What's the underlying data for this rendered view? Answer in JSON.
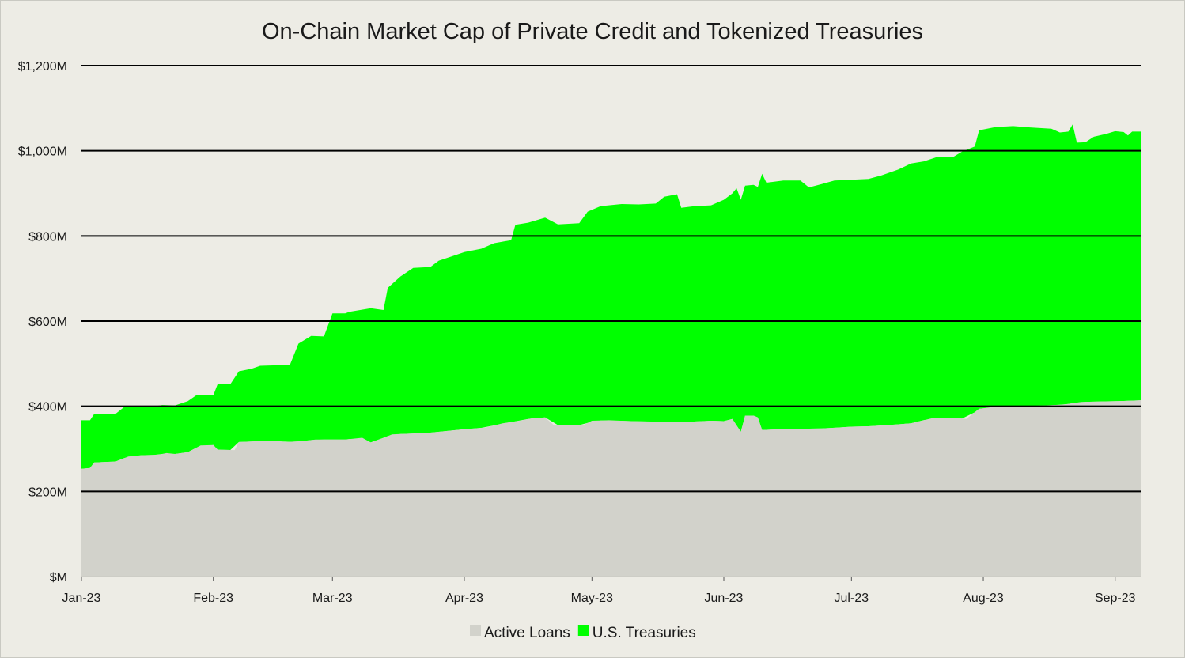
{
  "chart_data": {
    "type": "area",
    "stacked": true,
    "title": "On-Chain Market Cap of Private Credit and Tokenized Treasuries",
    "xlabel": "",
    "ylabel": "",
    "ylim": [
      0,
      1200
    ],
    "y_ticks": [
      {
        "value": 0,
        "label": "$M"
      },
      {
        "value": 200,
        "label": "$200M"
      },
      {
        "value": 400,
        "label": "$400M"
      },
      {
        "value": 600,
        "label": "$600M"
      },
      {
        "value": 800,
        "label": "$800M"
      },
      {
        "value": 1000,
        "label": "$1,000M"
      },
      {
        "value": 1200,
        "label": "$1,200M"
      }
    ],
    "x_ticks": [
      {
        "value": "2023-01-01",
        "label": "Jan-23"
      },
      {
        "value": "2023-02-01",
        "label": "Feb-23"
      },
      {
        "value": "2023-03-01",
        "label": "Mar-23"
      },
      {
        "value": "2023-04-01",
        "label": "Apr-23"
      },
      {
        "value": "2023-05-01",
        "label": "May-23"
      },
      {
        "value": "2023-06-01",
        "label": "Jun-23"
      },
      {
        "value": "2023-07-01",
        "label": "Jul-23"
      },
      {
        "value": "2023-08-01",
        "label": "Aug-23"
      },
      {
        "value": "2023-09-01",
        "label": "Sep-23"
      }
    ],
    "xlim": [
      "2023-01-01",
      "2023-09-07"
    ],
    "grid": "horizontal",
    "legend_position": "bottom",
    "series": [
      {
        "name": "Active Loans",
        "color": "#d2d2cb",
        "points": [
          [
            "2023-01-01",
            253
          ],
          [
            "2023-01-03",
            255
          ],
          [
            "2023-01-04",
            268
          ],
          [
            "2023-01-09",
            270
          ],
          [
            "2023-01-12",
            282
          ],
          [
            "2023-01-15",
            285
          ],
          [
            "2023-01-19",
            286
          ],
          [
            "2023-01-21",
            290
          ],
          [
            "2023-01-23",
            288
          ],
          [
            "2023-01-26",
            292
          ],
          [
            "2023-01-29",
            308
          ],
          [
            "2023-02-01",
            309
          ],
          [
            "2023-02-02",
            298
          ],
          [
            "2023-02-06",
            297
          ],
          [
            "2023-02-07",
            316
          ],
          [
            "2023-02-12",
            318
          ],
          [
            "2023-02-16",
            318
          ],
          [
            "2023-02-18",
            316
          ],
          [
            "2023-02-22",
            318
          ],
          [
            "2023-02-25",
            322
          ],
          [
            "2023-03-01",
            322
          ],
          [
            "2023-03-04",
            322
          ],
          [
            "2023-03-08",
            326
          ],
          [
            "2023-03-10",
            315
          ],
          [
            "2023-03-12",
            322
          ],
          [
            "2023-03-15",
            334
          ],
          [
            "2023-03-20",
            336
          ],
          [
            "2023-03-24",
            338
          ],
          [
            "2023-03-28",
            342
          ],
          [
            "2023-04-01",
            346
          ],
          [
            "2023-04-06",
            350
          ],
          [
            "2023-04-10",
            360
          ],
          [
            "2023-04-14",
            366
          ],
          [
            "2023-04-17",
            372
          ],
          [
            "2023-04-20",
            374
          ],
          [
            "2023-04-22",
            356
          ],
          [
            "2023-04-25",
            355
          ],
          [
            "2023-04-29",
            356
          ],
          [
            "2023-05-01",
            366
          ],
          [
            "2023-05-05",
            367
          ],
          [
            "2023-05-10",
            365
          ],
          [
            "2023-05-15",
            364
          ],
          [
            "2023-05-20",
            363
          ],
          [
            "2023-05-25",
            364
          ],
          [
            "2023-05-29",
            366
          ],
          [
            "2023-06-01",
            365
          ],
          [
            "2023-06-03",
            370
          ],
          [
            "2023-06-05",
            340
          ],
          [
            "2023-06-06",
            378
          ],
          [
            "2023-06-08",
            378
          ],
          [
            "2023-06-09",
            374
          ],
          [
            "2023-06-10",
            344
          ],
          [
            "2023-06-14",
            346
          ],
          [
            "2023-06-19",
            347
          ],
          [
            "2023-06-24",
            348
          ],
          [
            "2023-06-28",
            350
          ],
          [
            "2023-07-01",
            352
          ],
          [
            "2023-07-05",
            353
          ],
          [
            "2023-07-10",
            356
          ],
          [
            "2023-07-15",
            360
          ],
          [
            "2023-07-20",
            372
          ],
          [
            "2023-07-25",
            373
          ],
          [
            "2023-07-28",
            370
          ],
          [
            "2023-07-31",
            394
          ],
          [
            "2023-08-03",
            398
          ],
          [
            "2023-08-10",
            400
          ],
          [
            "2023-08-16",
            402
          ],
          [
            "2023-08-20",
            404
          ],
          [
            "2023-08-24",
            410
          ],
          [
            "2023-08-28",
            411
          ],
          [
            "2023-09-02",
            412
          ],
          [
            "2023-09-07",
            414
          ]
        ]
      },
      {
        "name": "U.S. Treasuries",
        "color": "#00ff00",
        "totals": [
          [
            "2023-01-01",
            367
          ],
          [
            "2023-01-03",
            367
          ],
          [
            "2023-01-04",
            382
          ],
          [
            "2023-01-09",
            382
          ],
          [
            "2023-01-11",
            398
          ],
          [
            "2023-01-15",
            400
          ],
          [
            "2023-01-18",
            400
          ],
          [
            "2023-01-20",
            403
          ],
          [
            "2023-01-23",
            402
          ],
          [
            "2023-01-26",
            412
          ],
          [
            "2023-01-28",
            426
          ],
          [
            "2023-02-01",
            426
          ],
          [
            "2023-02-02",
            452
          ],
          [
            "2023-02-05",
            452
          ],
          [
            "2023-02-07",
            482
          ],
          [
            "2023-02-10",
            488
          ],
          [
            "2023-02-12",
            495
          ],
          [
            "2023-02-15",
            496
          ],
          [
            "2023-02-19",
            497
          ],
          [
            "2023-02-21",
            547
          ],
          [
            "2023-02-24",
            565
          ],
          [
            "2023-02-27",
            564
          ],
          [
            "2023-03-01",
            618
          ],
          [
            "2023-03-04",
            618
          ],
          [
            "2023-03-05",
            622
          ],
          [
            "2023-03-10",
            630
          ],
          [
            "2023-03-13",
            626
          ],
          [
            "2023-03-14",
            678
          ],
          [
            "2023-03-17",
            705
          ],
          [
            "2023-03-20",
            725
          ],
          [
            "2023-03-24",
            727
          ],
          [
            "2023-03-26",
            742
          ],
          [
            "2023-03-29",
            752
          ],
          [
            "2023-04-01",
            762
          ],
          [
            "2023-04-05",
            770
          ],
          [
            "2023-04-08",
            783
          ],
          [
            "2023-04-12",
            790
          ],
          [
            "2023-04-13",
            826
          ],
          [
            "2023-04-16",
            831
          ],
          [
            "2023-04-20",
            843
          ],
          [
            "2023-04-23",
            827
          ],
          [
            "2023-04-28",
            830
          ],
          [
            "2023-04-30",
            857
          ],
          [
            "2023-05-03",
            870
          ],
          [
            "2023-05-08",
            875
          ],
          [
            "2023-05-12",
            874
          ],
          [
            "2023-05-16",
            876
          ],
          [
            "2023-05-18",
            892
          ],
          [
            "2023-05-21",
            898
          ],
          [
            "2023-05-22",
            866
          ],
          [
            "2023-05-25",
            870
          ],
          [
            "2023-05-29",
            872
          ],
          [
            "2023-06-01",
            885
          ],
          [
            "2023-06-03",
            900
          ],
          [
            "2023-06-04",
            912
          ],
          [
            "2023-06-05",
            885
          ],
          [
            "2023-06-06",
            918
          ],
          [
            "2023-06-08",
            920
          ],
          [
            "2023-06-09",
            915
          ],
          [
            "2023-06-10",
            946
          ],
          [
            "2023-06-11",
            925
          ],
          [
            "2023-06-15",
            930
          ],
          [
            "2023-06-19",
            930
          ],
          [
            "2023-06-21",
            914
          ],
          [
            "2023-06-24",
            922
          ],
          [
            "2023-06-27",
            930
          ],
          [
            "2023-07-01",
            932
          ],
          [
            "2023-07-05",
            934
          ],
          [
            "2023-07-08",
            942
          ],
          [
            "2023-07-12",
            956
          ],
          [
            "2023-07-15",
            970
          ],
          [
            "2023-07-18",
            975
          ],
          [
            "2023-07-21",
            985
          ],
          [
            "2023-07-25",
            986
          ],
          [
            "2023-07-27",
            998
          ],
          [
            "2023-07-30",
            1010
          ],
          [
            "2023-07-31",
            1048
          ],
          [
            "2023-08-04",
            1056
          ],
          [
            "2023-08-08",
            1058
          ],
          [
            "2023-08-12",
            1055
          ],
          [
            "2023-08-17",
            1052
          ],
          [
            "2023-08-19",
            1043
          ],
          [
            "2023-08-21",
            1045
          ],
          [
            "2023-08-22",
            1062
          ],
          [
            "2023-08-23",
            1019
          ],
          [
            "2023-08-25",
            1020
          ],
          [
            "2023-08-27",
            1033
          ],
          [
            "2023-08-30",
            1040
          ],
          [
            "2023-09-01",
            1046
          ],
          [
            "2023-09-03",
            1044
          ],
          [
            "2023-09-04",
            1036
          ],
          [
            "2023-09-05",
            1045
          ],
          [
            "2023-09-07",
            1045
          ]
        ]
      }
    ]
  }
}
